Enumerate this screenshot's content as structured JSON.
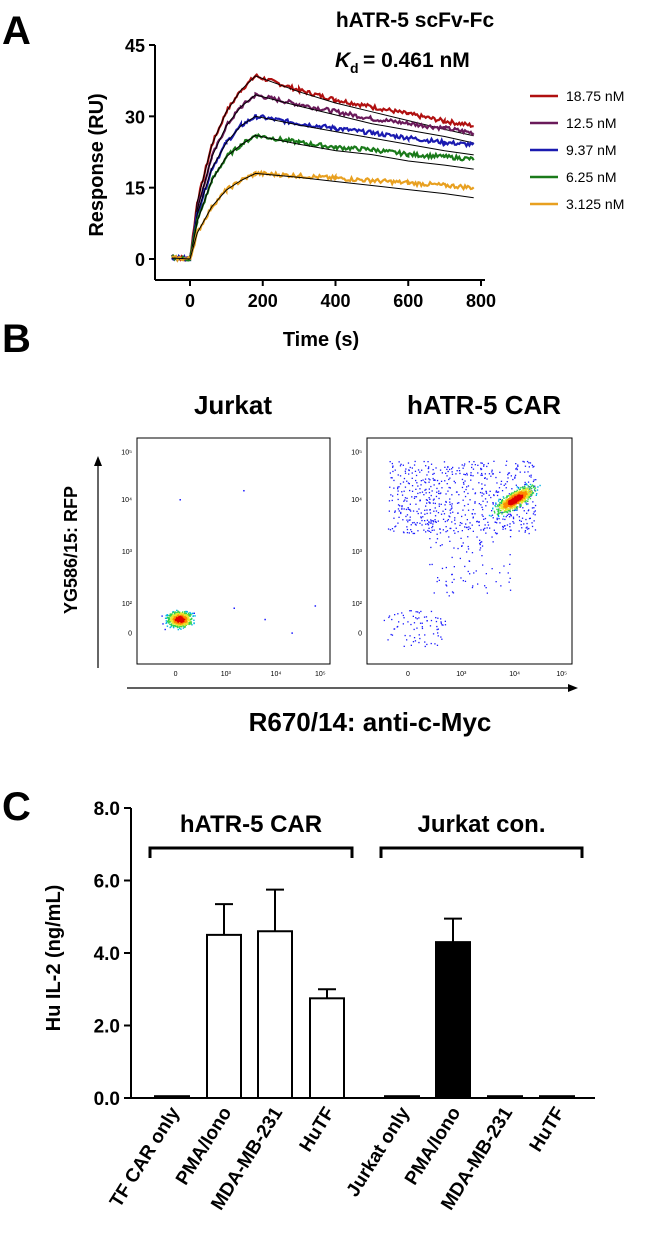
{
  "panels": {
    "a_letter": "A",
    "b_letter": "B",
    "c_letter": "C"
  },
  "colors": {
    "fit": "#000000",
    "density": [
      "#1a1aff",
      "#00b4e6",
      "#2fd24a",
      "#e8e830",
      "#ff8c00",
      "#e00000"
    ]
  },
  "chart_data": [
    {
      "type": "line",
      "title": "hATR-5 scFv-Fc",
      "kd_symbol": "K",
      "kd_subscript": "d",
      "kd_value": "= 0.461 nM",
      "xlabel": "Time (s)",
      "ylabel": "Response (RU)",
      "xlim": [
        -60,
        800
      ],
      "ylim": [
        -8,
        45
      ],
      "xticks": [
        0,
        200,
        400,
        600,
        800
      ],
      "yticks": [
        0,
        15,
        30,
        45
      ],
      "grid": false,
      "legend_position": "right",
      "injection_end_s": 180,
      "series": [
        {
          "name": "18.75 nM",
          "color": "#b01010",
          "x": [
            -50,
            0,
            20,
            60,
            100,
            140,
            180,
            300,
            400,
            500,
            600,
            700,
            780
          ],
          "y": [
            0.5,
            0,
            12,
            24,
            31,
            35.5,
            38.5,
            35.5,
            33.5,
            32,
            30.5,
            29,
            28
          ]
        },
        {
          "name": "12.5 nM",
          "color": "#6a1a5a",
          "x": [
            -50,
            0,
            20,
            60,
            100,
            140,
            180,
            300,
            400,
            500,
            600,
            700,
            780
          ],
          "y": [
            0.5,
            0,
            10.5,
            21.5,
            28,
            32,
            34.5,
            32.5,
            31,
            29.5,
            28.5,
            27.5,
            26.5
          ]
        },
        {
          "name": "9.37 nM",
          "color": "#1a1ab0",
          "x": [
            -50,
            0,
            20,
            60,
            100,
            140,
            180,
            300,
            400,
            500,
            600,
            700,
            780
          ],
          "y": [
            0.3,
            0,
            9.5,
            19,
            24.5,
            28,
            30,
            28.5,
            27.5,
            26.5,
            25.5,
            24.5,
            24
          ]
        },
        {
          "name": "6.25 nM",
          "color": "#1a7a1a",
          "x": [
            -50,
            0,
            20,
            60,
            100,
            140,
            180,
            300,
            400,
            500,
            600,
            700,
            780
          ],
          "y": [
            0.3,
            0,
            8,
            16.5,
            21.5,
            24,
            26,
            24.5,
            23.5,
            23,
            22,
            21.5,
            21
          ]
        },
        {
          "name": "3.125 nM",
          "color": "#e8a020",
          "x": [
            -50,
            0,
            20,
            60,
            100,
            140,
            180,
            300,
            400,
            500,
            600,
            700,
            780
          ],
          "y": [
            0.2,
            0,
            5.5,
            11,
            14.5,
            16.5,
            18,
            17.5,
            17,
            16.5,
            16,
            15.5,
            15
          ]
        }
      ]
    },
    {
      "type": "scatter",
      "plot": "density",
      "title": "Jurkat",
      "ylabel": "YG586/15: RFP",
      "xlabel": "R670/14: anti-c-Myc",
      "axis_tick_labels": [
        "0",
        "10³",
        "10⁴",
        "10⁵"
      ],
      "population_center": {
        "x": 0,
        "y": 0
      },
      "outlier_points": [
        {
          "x": "10²",
          "y": "10⁴"
        },
        {
          "x": "10³",
          "y": "10⁴"
        },
        {
          "x": "10´",
          "y": "10²"
        }
      ]
    },
    {
      "type": "scatter",
      "plot": "density",
      "title": "hATR-5 CAR",
      "axis_tick_labels": [
        "0",
        "10³",
        "10⁴",
        "10⁵"
      ],
      "population_center": {
        "x": "10⁴",
        "y": "10⁴"
      }
    },
    {
      "type": "bar",
      "ylabel": "Hu IL-2 (ng/mL)",
      "ylim": [
        0,
        8
      ],
      "yticks": [
        "0.0",
        "2.0",
        "4.0",
        "6.0",
        "8.0"
      ],
      "groups": [
        {
          "label": "hATR-5 CAR",
          "fill": "#ffffff"
        },
        {
          "label": "Jurkat con.",
          "fill": "#000000"
        }
      ],
      "categories": [
        "TF CAR only",
        "PMA/Iono",
        "MDA-MB-231",
        "HuTF",
        "Jurkat only",
        "PMA/Iono",
        "MDA-MB-231",
        "HuTF"
      ],
      "values": [
        0.05,
        4.5,
        4.6,
        2.75,
        0.05,
        4.3,
        0.05,
        0.05
      ],
      "errors": [
        0,
        0.85,
        1.15,
        0.25,
        0,
        0.65,
        0,
        0
      ]
    }
  ]
}
